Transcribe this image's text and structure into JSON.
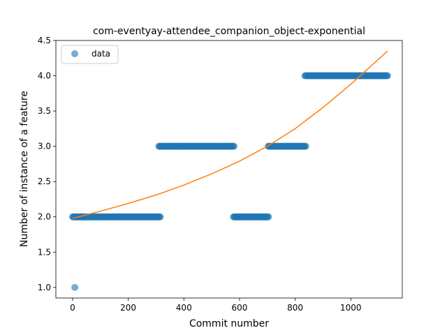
{
  "chart_data": {
    "type": "scatter",
    "title": "com-eventyay-attendee_companion_object-exponential",
    "xlabel": "Commit number",
    "ylabel": "Number of instance of a feature",
    "xlim": [
      -60,
      1185
    ],
    "ylim": [
      0.85,
      4.5
    ],
    "xticks": [
      0,
      200,
      400,
      600,
      800,
      1000
    ],
    "yticks": [
      1.0,
      1.5,
      2.0,
      2.5,
      3.0,
      3.5,
      4.0,
      4.5
    ],
    "xtick_labels": [
      "0",
      "200",
      "400",
      "600",
      "800",
      "1000"
    ],
    "ytick_labels": [
      "1.0",
      "1.5",
      "2.0",
      "2.5",
      "3.0",
      "3.5",
      "4.0",
      "4.5"
    ],
    "legend": {
      "position": "top-left",
      "entries": [
        "data"
      ]
    },
    "colors": {
      "data": "#1f77b4",
      "fit": "#ff7f0e"
    },
    "series": [
      {
        "name": "data",
        "kind": "scatter",
        "segments": [
          {
            "x_start": 0,
            "x_end": 315,
            "y": 2.0
          },
          {
            "x_start": 310,
            "x_end": 580,
            "y": 3.0
          },
          {
            "x_start": 578,
            "x_end": 705,
            "y": 2.0
          },
          {
            "x_start": 703,
            "x_end": 838,
            "y": 3.0
          },
          {
            "x_start": 835,
            "x_end": 1132,
            "y": 4.0
          }
        ],
        "points": [
          {
            "x": 8,
            "y": 1.0
          }
        ]
      },
      {
        "kind": "line",
        "x": [
          0,
          100,
          200,
          300,
          400,
          500,
          600,
          700,
          800,
          900,
          1000,
          1132
        ],
        "y": [
          1.98,
          2.08,
          2.19,
          2.31,
          2.45,
          2.61,
          2.79,
          3.0,
          3.25,
          3.55,
          3.88,
          4.35
        ]
      }
    ]
  }
}
